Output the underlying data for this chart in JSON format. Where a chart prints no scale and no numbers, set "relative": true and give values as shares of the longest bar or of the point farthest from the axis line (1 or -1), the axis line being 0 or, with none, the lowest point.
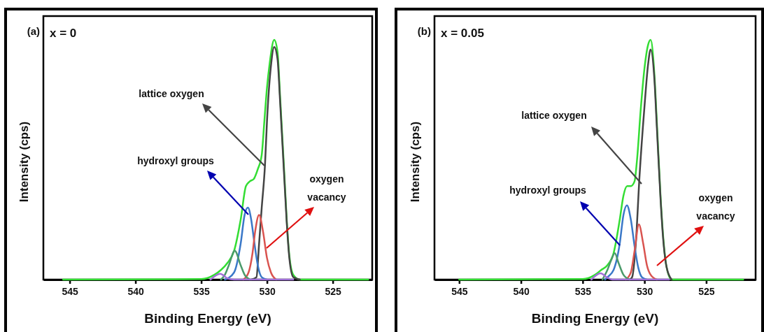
{
  "chart_data": [
    {
      "type": "line",
      "title": "(a)",
      "subtitle": "x = 0",
      "xlabel": "Binding Energy (eV)",
      "ylabel": "Intensity (cps)",
      "relative": true,
      "xlim": [
        547,
        522
      ],
      "xticks": [
        545,
        540,
        535,
        530,
        525
      ],
      "grid": false,
      "marker": "none",
      "line_style": "solid",
      "series": [
        {
          "color": "#33dd33",
          "x": [
            545.5,
            535,
            534,
            533.5,
            533,
            532.5,
            532,
            531.6,
            531.3,
            531,
            530.7,
            530.4,
            530.2,
            530,
            529.8,
            529.45,
            529.2,
            529,
            528.7,
            528.5,
            528.3,
            528,
            527.5,
            522.3
          ],
          "values": [
            0,
            0.002,
            0.02,
            0.04,
            0.07,
            0.12,
            0.25,
            0.39,
            0.41,
            0.42,
            0.46,
            0.52,
            0.66,
            0.8,
            0.9,
            1,
            0.95,
            0.76,
            0.46,
            0.25,
            0.1,
            0.02,
            0,
            0
          ]
        },
        {
          "color": "#444444",
          "x": [
            531.2,
            530.8,
            530.6,
            530.4,
            530.15,
            530,
            529.7,
            529.45,
            529.2,
            529,
            528.7,
            528.5,
            528.3,
            528,
            527.5
          ],
          "values": [
            0,
            0.01,
            0.15,
            0.3,
            0.48,
            0.66,
            0.89,
            0.97,
            0.92,
            0.74,
            0.44,
            0.24,
            0.09,
            0.01,
            0
          ]
        },
        {
          "color": "#3a78c8",
          "x": [
            533.2,
            532.5,
            532,
            531.7,
            531.45,
            531.2,
            531,
            530.7,
            530.4,
            530
          ],
          "values": [
            0,
            0.03,
            0.15,
            0.27,
            0.3,
            0.25,
            0.17,
            0.06,
            0.01,
            0
          ]
        },
        {
          "color": "#d9534f",
          "x": [
            531.8,
            531.4,
            531.1,
            530.9,
            530.6,
            530.3,
            530,
            529.7,
            529.3
          ],
          "values": [
            0,
            0.03,
            0.11,
            0.2,
            0.27,
            0.2,
            0.09,
            0.03,
            0
          ]
        },
        {
          "color": "#4a9a6a",
          "x": [
            533.5,
            533.2,
            532.9,
            532.45,
            532,
            531.7,
            531.3
          ],
          "values": [
            0,
            0.02,
            0.06,
            0.12,
            0.06,
            0.02,
            0
          ]
        },
        {
          "color": "#a070d8",
          "x": [
            534.3,
            533.55,
            533,
            532.5,
            528
          ],
          "values": [
            0,
            0.024,
            0.005,
            0,
            0
          ]
        }
      ],
      "annotations": [
        "lattice oxygen",
        "hydroxyl groups",
        "oxygen\nvacancy"
      ]
    },
    {
      "type": "line",
      "title": "(b)",
      "subtitle": "x = 0.05",
      "xlabel": "Binding Energy (eV)",
      "ylabel": "Intensity (cps)",
      "relative": true,
      "xlim": [
        547,
        521
      ],
      "xticks": [
        545,
        540,
        535,
        530,
        525
      ],
      "grid": false,
      "marker": "none",
      "line_style": "solid",
      "series": [
        {
          "color": "#33dd33",
          "x": [
            545,
            535,
            534,
            533.5,
            533,
            532.5,
            532,
            531.7,
            531.4,
            531.1,
            530.8,
            530.6,
            530.3,
            530,
            529.7,
            529.5,
            529.2,
            529,
            528.7,
            528.5,
            528.2,
            527.8,
            522
          ],
          "values": [
            0,
            0.002,
            0.02,
            0.04,
            0.06,
            0.11,
            0.25,
            0.35,
            0.39,
            0.39,
            0.41,
            0.5,
            0.71,
            0.88,
            0.98,
            1,
            0.86,
            0.66,
            0.35,
            0.19,
            0.05,
            0,
            0
          ]
        },
        {
          "color": "#444444",
          "x": [
            531.2,
            531,
            530.7,
            530.4,
            530,
            529.7,
            529.5,
            529.2,
            529,
            528.7,
            528.5,
            528.2,
            527.8
          ],
          "values": [
            0,
            0.01,
            0.15,
            0.43,
            0.72,
            0.9,
            0.96,
            0.84,
            0.64,
            0.34,
            0.18,
            0.05,
            0
          ]
        },
        {
          "color": "#3a78c8",
          "x": [
            533.2,
            533,
            532.5,
            532,
            531.7,
            531.42,
            531.1,
            530.8,
            530.5,
            530.2,
            529.8
          ],
          "values": [
            0,
            0.01,
            0.04,
            0.15,
            0.27,
            0.31,
            0.25,
            0.14,
            0.05,
            0.01,
            0
          ]
        },
        {
          "color": "#d9534f",
          "x": [
            531.5,
            531.1,
            530.8,
            530.45,
            530.1,
            529.8,
            529.5,
            529
          ],
          "values": [
            0,
            0.03,
            0.12,
            0.23,
            0.15,
            0.06,
            0.02,
            0
          ]
        },
        {
          "color": "#4a9a6a",
          "x": [
            533.4,
            533,
            532.7,
            532.4,
            532.1,
            531.7,
            531.2
          ],
          "values": [
            0,
            0.04,
            0.08,
            0.11,
            0.07,
            0.02,
            0
          ]
        },
        {
          "color": "#a070d8",
          "x": [
            534.3,
            533.55,
            533,
            532.5,
            528
          ],
          "values": [
            0,
            0.026,
            0.008,
            0,
            0
          ]
        }
      ],
      "annotations": [
        "lattice oxygen",
        "hydroxyl groups",
        "oxygen\nvacancy"
      ]
    }
  ]
}
